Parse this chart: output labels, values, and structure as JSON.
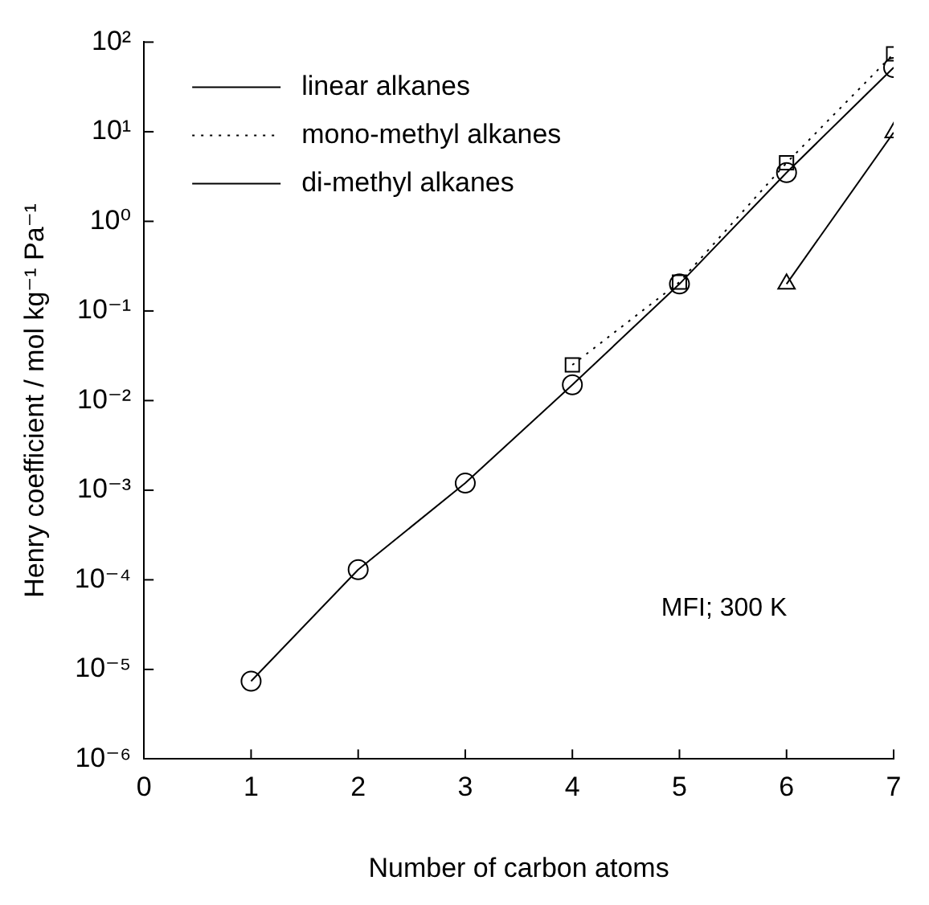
{
  "chart_data": {
    "type": "line",
    "xlabel": "Number of carbon atoms",
    "ylabel": "Henry coefficient / mol kg⁻¹ Pa⁻¹",
    "log": "y",
    "grid": false,
    "legend": "top left",
    "xlim": [
      0,
      7
    ],
    "xticks": [
      0,
      1,
      2,
      3,
      4,
      5,
      6,
      7
    ],
    "ylim": [
      1e-06,
      100
    ],
    "yticks": [
      {
        "value": 1e-06,
        "label": "10⁻⁶"
      },
      {
        "value": 1e-05,
        "label": "10⁻⁵"
      },
      {
        "value": 0.0001,
        "label": "10⁻⁴"
      },
      {
        "value": 0.001,
        "label": "10⁻³"
      },
      {
        "value": 0.01,
        "label": "10⁻²"
      },
      {
        "value": 0.1,
        "label": "10⁻¹"
      },
      {
        "value": 1,
        "label": "10⁰"
      },
      {
        "value": 10,
        "label": "10¹"
      },
      {
        "value": 100,
        "label": "10²"
      }
    ],
    "annotations": [
      "MFI; 300 K"
    ],
    "series": [
      {
        "name": "linear alkanes",
        "color": "#000000",
        "marker": "circle",
        "line_style": "solid",
        "x": [
          1,
          2,
          3,
          4,
          5,
          6,
          7
        ],
        "values": [
          7.4e-06,
          0.00013,
          0.0012,
          0.015,
          0.2,
          3.5,
          52
        ]
      },
      {
        "name": "mono-methyl alkanes",
        "color": "#000000",
        "marker": "square",
        "line_style": "dotted",
        "x": [
          4,
          5,
          6,
          7
        ],
        "values": [
          0.025,
          0.21,
          4.5,
          74
        ]
      },
      {
        "name": "di-methyl alkanes",
        "color": "#000000",
        "marker": "triangle",
        "line_style": "solid",
        "x": [
          6,
          7
        ],
        "values": [
          0.2,
          9.8
        ]
      }
    ]
  }
}
